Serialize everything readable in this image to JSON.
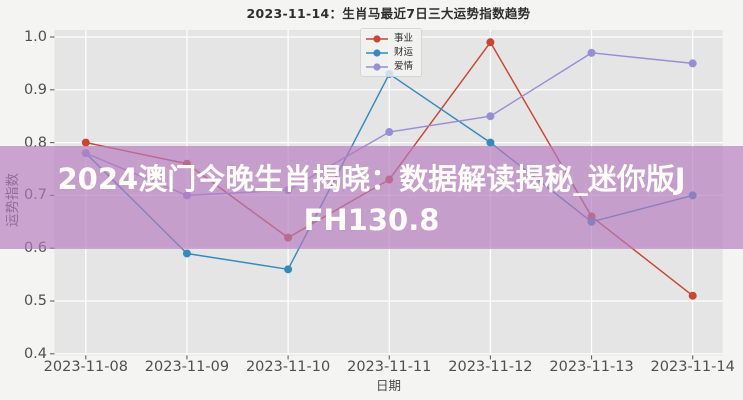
{
  "title": "2023-11-14：生肖马最近7日三大运势指数趋势",
  "watermark": {
    "lines": [
      "2024澳门今晚生肖揭晓：数据解读揭秘_迷你版J",
      "FH130.8"
    ],
    "band_color": "rgba(182,124,190,0.68)",
    "text_color": "#fffef9"
  },
  "chart_data": {
    "type": "line",
    "title": "2023-11-14：生肖马最近7日三大运势指数趋势",
    "xlabel": "日期",
    "ylabel": "运势指数",
    "categories": [
      "2023-11-08",
      "2023-11-09",
      "2023-11-10",
      "2023-11-11",
      "2023-11-12",
      "2023-11-13",
      "2023-11-14"
    ],
    "series": [
      {
        "name": "事业",
        "color": "#c74634",
        "values": [
          0.8,
          0.76,
          0.62,
          0.73,
          0.99,
          0.66,
          0.51
        ]
      },
      {
        "name": "财运",
        "color": "#348abd",
        "values": [
          0.78,
          0.59,
          0.56,
          0.93,
          0.8,
          0.65,
          0.7
        ]
      },
      {
        "name": "爱情",
        "color": "#988ed5",
        "values": [
          0.78,
          0.7,
          0.71,
          0.82,
          0.85,
          0.97,
          0.95
        ]
      }
    ],
    "y_ticks": [
      "1.0",
      "0.9",
      "0.8",
      "0.7",
      "0.6",
      "0.5",
      "0.4"
    ],
    "ylim": [
      0.4,
      1.0
    ],
    "grid": true,
    "legend_position": "upper center",
    "plot_background": "#e5e5e5",
    "figure_background": "#f4f4f3",
    "gridline_color": "#ffffff"
  }
}
